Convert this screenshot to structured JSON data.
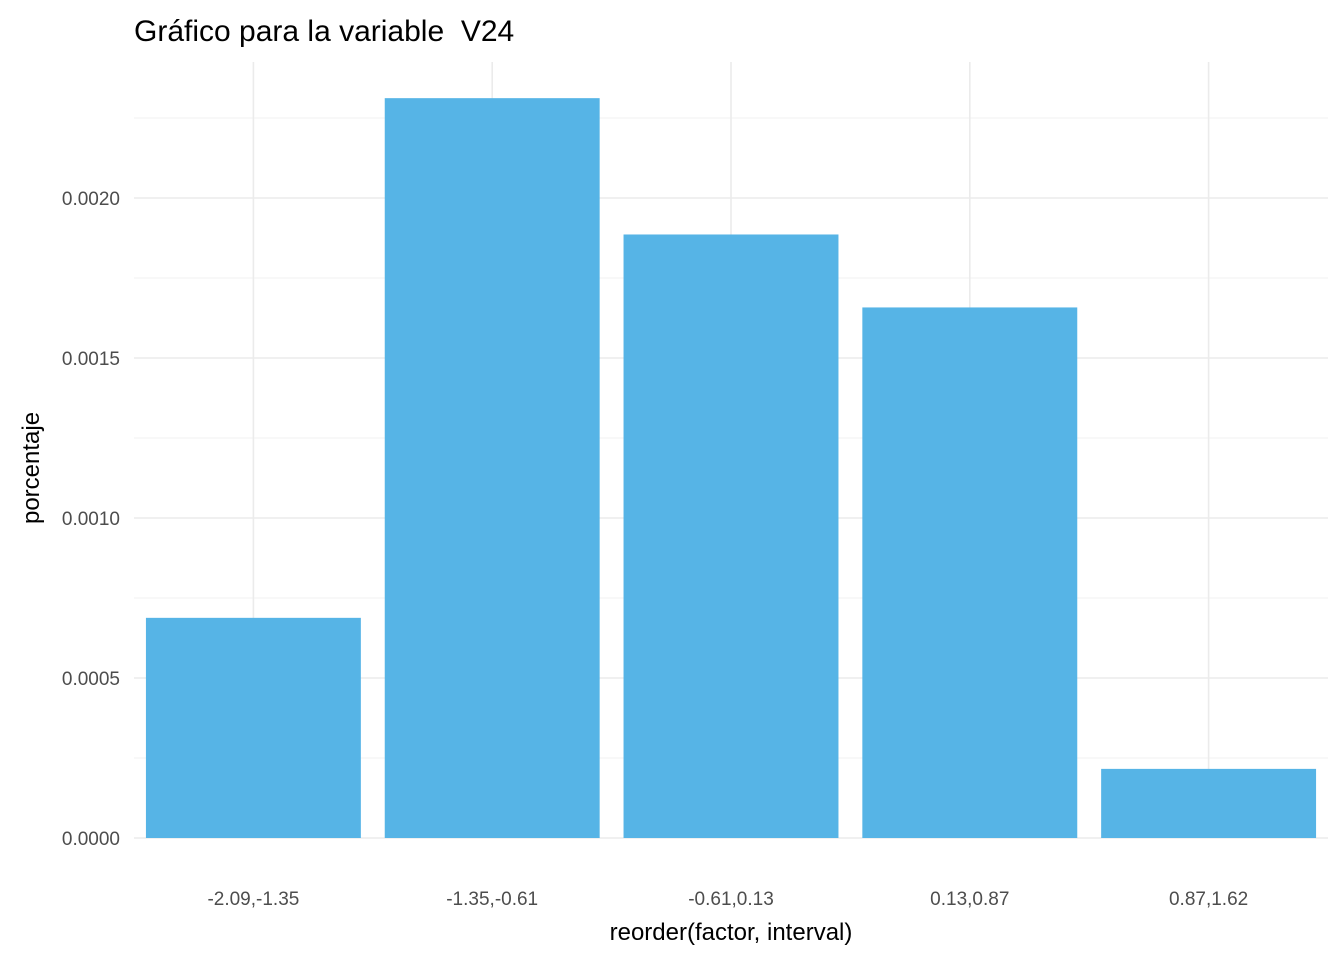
{
  "chart_data": {
    "type": "bar",
    "title": "Gráfico para la variable  V24",
    "xlabel": "reorder(factor, interval)",
    "ylabel": "porcentaje",
    "categories": [
      "-2.09,-1.35",
      "-1.35,-0.61",
      "-0.61,0.13",
      "0.13,0.87",
      "0.87,1.62"
    ],
    "values": [
      0.000688,
      0.002312,
      0.001886,
      0.001658,
      0.000216
    ],
    "ylim": [
      0,
      0.00232
    ],
    "yticks": [
      0.0,
      0.0005,
      0.001,
      0.0015,
      0.002
    ],
    "ytick_labels": [
      "0.0000",
      "0.0005",
      "0.0010",
      "0.0015",
      "0.0020"
    ],
    "grid": true,
    "legend": "none",
    "bar_color": "#56B4E6"
  }
}
